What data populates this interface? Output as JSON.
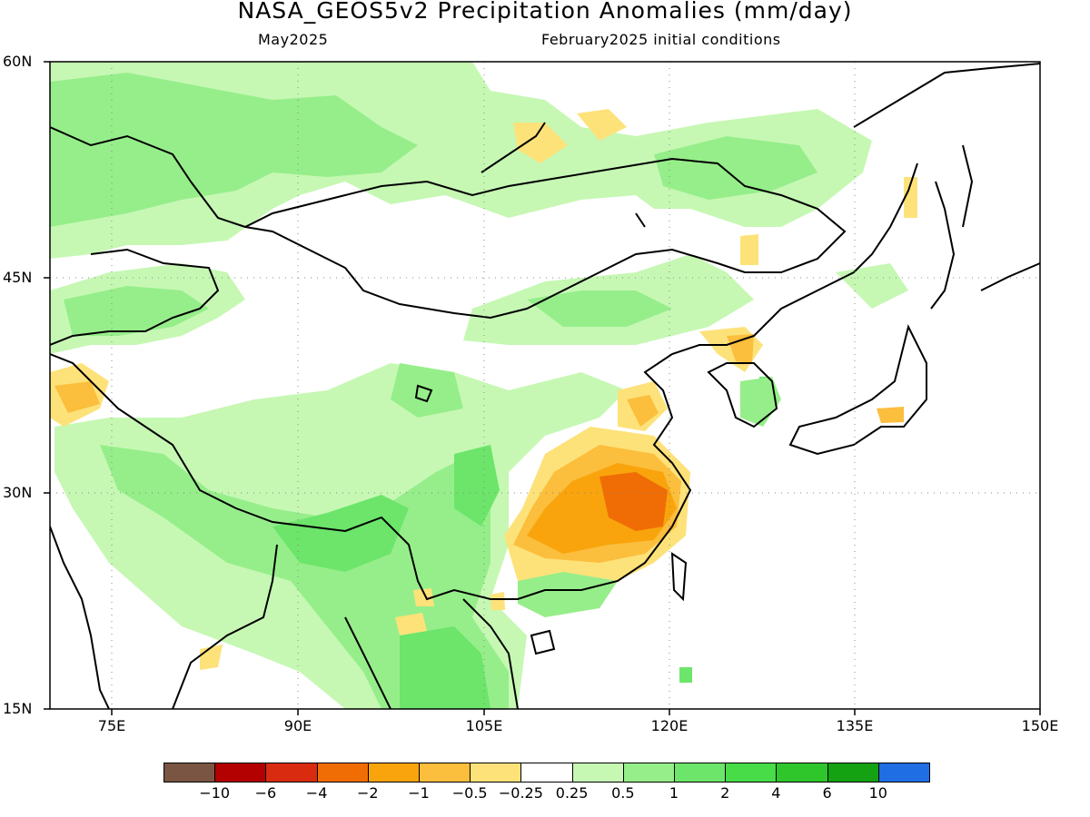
{
  "header": {
    "title": "NASA_GEOS5v2 Precipitation Anomalies (mm/day)",
    "subtitle_left": "May2025",
    "subtitle_right": "February2025 initial conditions"
  },
  "axes": {
    "lat_labels": [
      "60N",
      "45N",
      "30N",
      "15N"
    ],
    "lon_labels": [
      "75E",
      "90E",
      "105E",
      "120E",
      "135E",
      "150E"
    ],
    "lat_range": [
      15,
      60
    ],
    "lon_range": [
      70,
      150
    ]
  },
  "colorbar": {
    "colors": [
      "#7a5544",
      "#b30000",
      "#d92b0f",
      "#f06d05",
      "#f9a40c",
      "#fbbe3d",
      "#fde27a",
      "#ffffff",
      "#c6f8b4",
      "#96ee8a",
      "#6ce56a",
      "#47dc48",
      "#2fc62c",
      "#14a112",
      "#1f6ee4"
    ],
    "labels": [
      "-10",
      "-6",
      "-4",
      "-2",
      "-1",
      "-0.5",
      "-0.25",
      "0.25",
      "0.5",
      "1",
      "2",
      "4",
      "6",
      "10"
    ]
  }
}
